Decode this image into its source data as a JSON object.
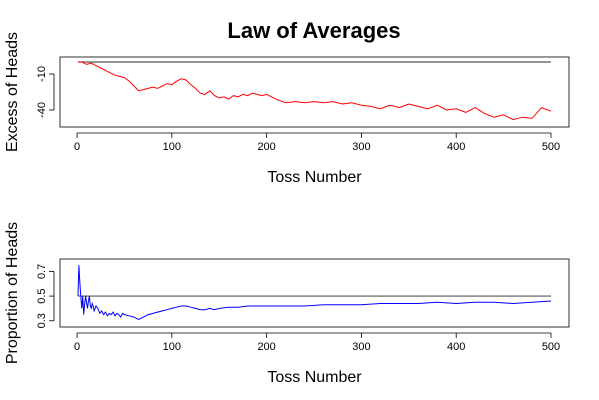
{
  "page": {
    "title": "Law of Averages"
  },
  "chart_data": [
    {
      "type": "line",
      "title": "Law of Averages",
      "xlabel": "Toss Number",
      "ylabel": "Excess of Heads",
      "xlim": [
        1,
        500
      ],
      "ylim": [
        -50,
        0
      ],
      "xticks": [
        0,
        100,
        200,
        300,
        400,
        500
      ],
      "yticks": [
        -10,
        -40
      ],
      "reference_line": {
        "y": 0,
        "color": "#555555"
      },
      "series": [
        {
          "color": "#ff0000",
          "x": [
            1,
            5,
            10,
            15,
            20,
            25,
            30,
            35,
            40,
            45,
            50,
            55,
            60,
            65,
            70,
            75,
            80,
            85,
            90,
            95,
            100,
            105,
            110,
            115,
            120,
            125,
            130,
            135,
            140,
            145,
            150,
            155,
            160,
            165,
            170,
            175,
            180,
            185,
            190,
            195,
            200,
            210,
            220,
            230,
            240,
            250,
            260,
            270,
            280,
            290,
            300,
            310,
            320,
            330,
            340,
            350,
            360,
            370,
            380,
            390,
            400,
            410,
            420,
            430,
            440,
            450,
            460,
            470,
            480,
            490,
            500
          ],
          "y": [
            0,
            0,
            -2,
            -1,
            -3,
            -5,
            -7,
            -9,
            -11,
            -12,
            -13,
            -16,
            -20,
            -24,
            -23,
            -22,
            -21,
            -22,
            -20,
            -18,
            -19,
            -16,
            -14,
            -15,
            -19,
            -22,
            -26,
            -27,
            -24,
            -28,
            -30,
            -29,
            -31,
            -28,
            -29,
            -27,
            -28,
            -26,
            -27,
            -28,
            -27,
            -31,
            -34,
            -33,
            -34,
            -33,
            -34,
            -33,
            -35,
            -34,
            -36,
            -37,
            -39,
            -36,
            -38,
            -35,
            -37,
            -39,
            -36,
            -40,
            -39,
            -42,
            -38,
            -43,
            -46,
            -44,
            -48,
            -46,
            -47,
            -38,
            -41
          ]
        }
      ]
    },
    {
      "type": "line",
      "title": "",
      "xlabel": "Toss Number",
      "ylabel": "Proportion of Heads",
      "xlim": [
        1,
        500
      ],
      "ylim": [
        0.29,
        0.76
      ],
      "xticks": [
        0,
        100,
        200,
        300,
        400,
        500
      ],
      "yticks": [
        0.3,
        0.5,
        0.7
      ],
      "reference_line": {
        "y": 0.5,
        "color": "#555555"
      },
      "series": [
        {
          "color": "#0000ff",
          "x": [
            1,
            2,
            3,
            4,
            5,
            6,
            7,
            8,
            9,
            10,
            11,
            12,
            13,
            14,
            15,
            16,
            17,
            18,
            19,
            20,
            22,
            24,
            26,
            28,
            30,
            32,
            34,
            36,
            38,
            40,
            42,
            44,
            46,
            48,
            50,
            55,
            60,
            65,
            70,
            75,
            80,
            85,
            90,
            95,
            100,
            105,
            110,
            115,
            120,
            125,
            130,
            135,
            140,
            145,
            150,
            160,
            170,
            180,
            190,
            200,
            220,
            240,
            260,
            280,
            300,
            320,
            340,
            360,
            380,
            400,
            420,
            440,
            460,
            480,
            500
          ],
          "y": [
            0.5,
            0.75,
            0.6,
            0.5,
            0.4,
            0.5,
            0.35,
            0.43,
            0.5,
            0.45,
            0.4,
            0.46,
            0.5,
            0.42,
            0.4,
            0.44,
            0.42,
            0.38,
            0.4,
            0.42,
            0.4,
            0.36,
            0.38,
            0.35,
            0.37,
            0.34,
            0.36,
            0.35,
            0.37,
            0.34,
            0.36,
            0.35,
            0.33,
            0.36,
            0.35,
            0.34,
            0.33,
            0.31,
            0.33,
            0.35,
            0.36,
            0.37,
            0.38,
            0.39,
            0.4,
            0.41,
            0.42,
            0.42,
            0.41,
            0.4,
            0.39,
            0.39,
            0.4,
            0.39,
            0.4,
            0.41,
            0.41,
            0.42,
            0.42,
            0.42,
            0.42,
            0.42,
            0.43,
            0.43,
            0.43,
            0.44,
            0.44,
            0.44,
            0.45,
            0.44,
            0.45,
            0.45,
            0.44,
            0.45,
            0.46
          ]
        }
      ]
    }
  ]
}
